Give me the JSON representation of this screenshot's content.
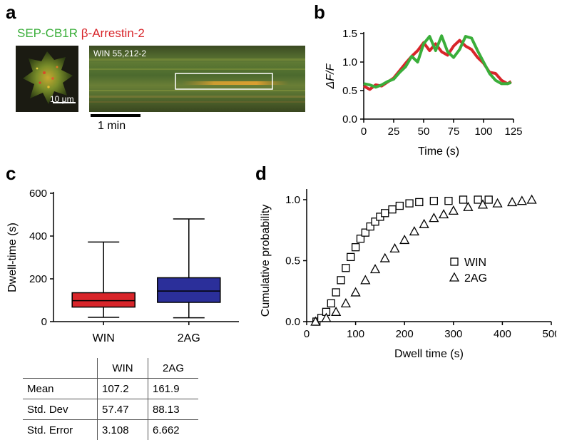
{
  "panels": {
    "a": "a",
    "b": "b",
    "c": "c",
    "d": "d"
  },
  "panel_a": {
    "legend_green": "SEP-CB1R",
    "legend_red": "β-Arrestin-2",
    "scale_label": "10 μm",
    "kymo_label": "WIN 55,212-2",
    "time_scale_label": "1 min",
    "colors": {
      "green": "#3aae3a",
      "red": "#d8252a"
    }
  },
  "chart_data": [
    {
      "type": "line",
      "panel": "b",
      "xlabel": "Time (s)",
      "ylabel": "ΔF/F",
      "xlim": [
        0,
        125
      ],
      "ylim": [
        0,
        1.5
      ],
      "xticks": [
        0,
        25,
        50,
        75,
        100,
        125
      ],
      "yticks": [
        0.0,
        0.5,
        1.0,
        1.5
      ],
      "series": [
        {
          "color": "#d8252a",
          "x": [
            0,
            5,
            10,
            15,
            20,
            25,
            30,
            35,
            40,
            45,
            50,
            55,
            60,
            65,
            70,
            75,
            80,
            85,
            90,
            95,
            100,
            105,
            110,
            115,
            120,
            123
          ],
          "y": [
            0.58,
            0.52,
            0.6,
            0.58,
            0.65,
            0.72,
            0.85,
            0.98,
            1.1,
            1.2,
            1.34,
            1.2,
            1.32,
            1.18,
            1.12,
            1.28,
            1.38,
            1.28,
            1.22,
            1.08,
            0.98,
            0.82,
            0.8,
            0.68,
            0.62,
            0.66
          ]
        },
        {
          "color": "#3aae3a",
          "x": [
            0,
            5,
            10,
            15,
            20,
            25,
            30,
            35,
            40,
            45,
            50,
            55,
            60,
            65,
            70,
            75,
            80,
            85,
            90,
            95,
            100,
            105,
            110,
            115,
            120,
            123
          ],
          "y": [
            0.62,
            0.6,
            0.56,
            0.6,
            0.66,
            0.7,
            0.82,
            0.92,
            1.1,
            1.0,
            1.32,
            1.45,
            1.2,
            1.46,
            1.18,
            1.08,
            1.22,
            1.45,
            1.42,
            1.2,
            1.0,
            0.8,
            0.68,
            0.62,
            0.62,
            0.64
          ]
        }
      ]
    },
    {
      "type": "box",
      "panel": "c",
      "ylabel": "Dwell-time (s)",
      "ylim": [
        0,
        600
      ],
      "yticks": [
        0,
        200,
        400,
        600
      ],
      "categories": [
        "WIN",
        "2AG"
      ],
      "boxes": [
        {
          "name": "WIN",
          "color": "#d8252a",
          "min": 20,
          "q1": 68,
          "median": 98,
          "q3": 135,
          "max": 372
        },
        {
          "name": "2AG",
          "color": "#2b2f9a",
          "min": 18,
          "q1": 90,
          "median": 143,
          "q3": 205,
          "max": 480
        }
      ]
    },
    {
      "type": "scatter",
      "panel": "d",
      "xlabel": "Dwell time (s)",
      "ylabel": "Cumulative probability",
      "xlim": [
        0,
        500
      ],
      "ylim": [
        0,
        1.0
      ],
      "xticks": [
        0,
        100,
        200,
        300,
        400,
        500
      ],
      "yticks": [
        0.0,
        0.5,
        1.0
      ],
      "series": [
        {
          "name": "WIN",
          "marker": "square",
          "x": [
            20,
            30,
            40,
            50,
            60,
            70,
            80,
            90,
            100,
            110,
            120,
            130,
            140,
            150,
            160,
            175,
            190,
            210,
            230,
            260,
            290,
            320,
            350,
            372
          ],
          "y": [
            0.0,
            0.03,
            0.08,
            0.15,
            0.24,
            0.34,
            0.44,
            0.53,
            0.61,
            0.68,
            0.73,
            0.78,
            0.82,
            0.86,
            0.89,
            0.92,
            0.95,
            0.97,
            0.98,
            0.99,
            0.99,
            1.0,
            1.0,
            1.0
          ]
        },
        {
          "name": "2AG",
          "marker": "triangle",
          "x": [
            18,
            40,
            60,
            80,
            100,
            120,
            140,
            160,
            180,
            200,
            220,
            240,
            260,
            280,
            300,
            330,
            360,
            390,
            420,
            440,
            460
          ],
          "y": [
            0.0,
            0.03,
            0.08,
            0.15,
            0.24,
            0.34,
            0.43,
            0.52,
            0.6,
            0.67,
            0.74,
            0.8,
            0.85,
            0.88,
            0.91,
            0.94,
            0.96,
            0.97,
            0.98,
            0.99,
            1.0
          ]
        }
      ]
    }
  ],
  "stats_table": {
    "headers": [
      "",
      "WIN",
      "2AG"
    ],
    "rows": [
      [
        "Mean",
        "107.2",
        "161.9"
      ],
      [
        "Std. Dev",
        "57.47",
        "88.13"
      ],
      [
        "Std. Error",
        "3.108",
        "6.662"
      ]
    ]
  }
}
